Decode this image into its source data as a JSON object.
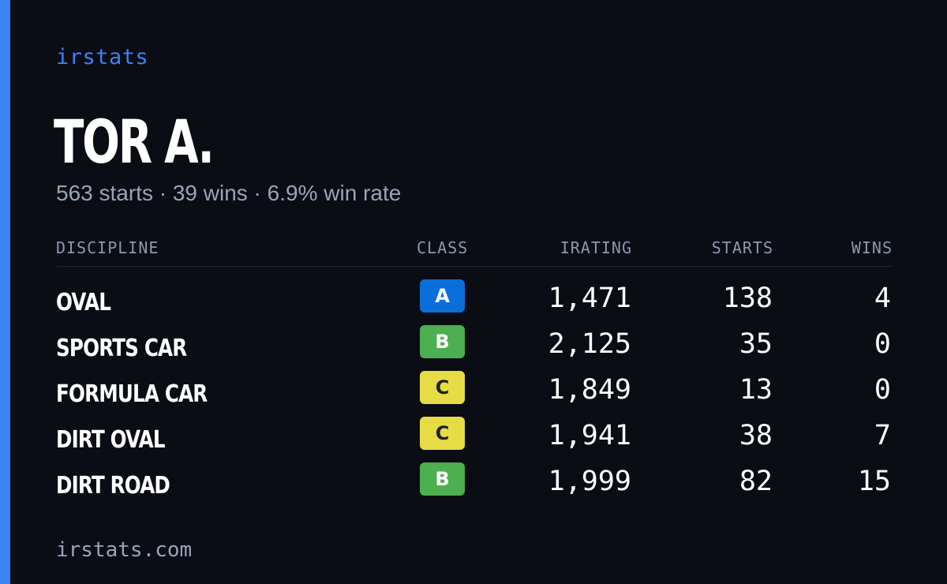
{
  "brand": {
    "name": "irstats",
    "accent_color": "#3b82f6"
  },
  "driver": {
    "name": "TOR A.",
    "summary": "563 starts · 39 wins · 6.9% win rate"
  },
  "table": {
    "headers": {
      "discipline": "DISCIPLINE",
      "class": "CLASS",
      "irating": "IRATING",
      "starts": "STARTS",
      "wins": "WINS"
    },
    "rows": [
      {
        "discipline": "OVAL",
        "class": "A",
        "class_bg": "#0a6fd8",
        "class_fg": "#ffffff",
        "irating": "1,471",
        "starts": "138",
        "wins": "4"
      },
      {
        "discipline": "SPORTS CAR",
        "class": "B",
        "class_bg": "#4caf50",
        "class_fg": "#ffffff",
        "irating": "2,125",
        "starts": "35",
        "wins": "0"
      },
      {
        "discipline": "FORMULA CAR",
        "class": "C",
        "class_bg": "#e6dc45",
        "class_fg": "#222222",
        "irating": "1,849",
        "starts": "13",
        "wins": "0"
      },
      {
        "discipline": "DIRT OVAL",
        "class": "C",
        "class_bg": "#e6dc45",
        "class_fg": "#222222",
        "irating": "1,941",
        "starts": "38",
        "wins": "7"
      },
      {
        "discipline": "DIRT ROAD",
        "class": "B",
        "class_bg": "#4caf50",
        "class_fg": "#ffffff",
        "irating": "1,999",
        "starts": "82",
        "wins": "15"
      }
    ]
  },
  "footer": {
    "url": "irstats.com"
  }
}
